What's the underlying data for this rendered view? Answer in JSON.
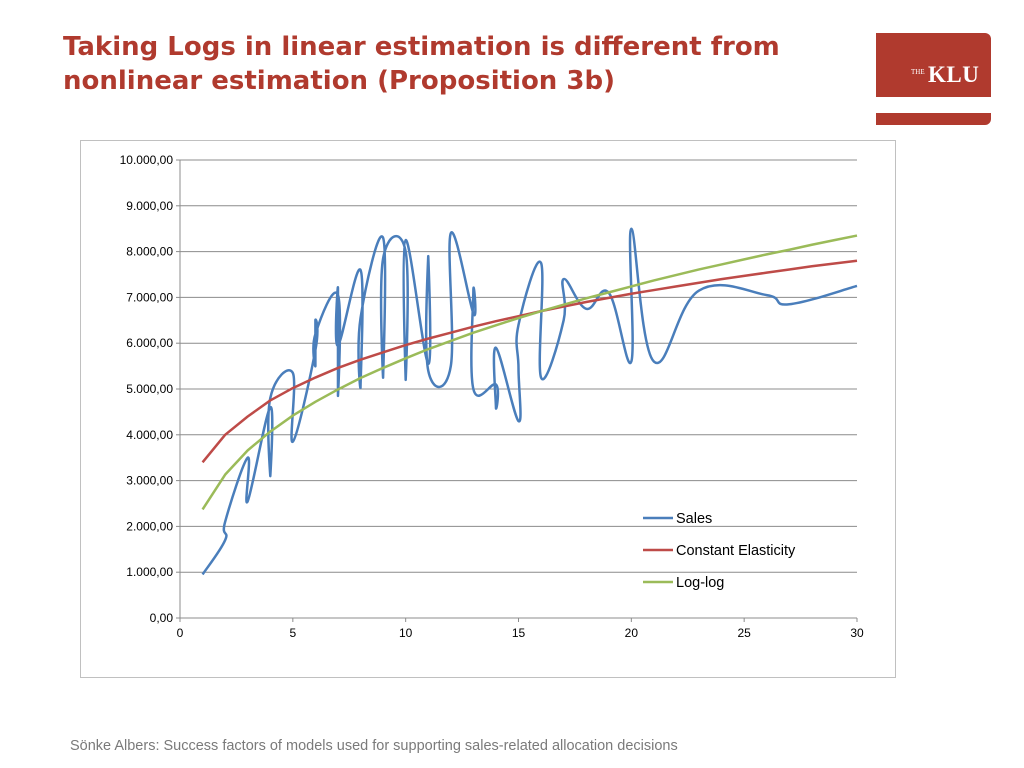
{
  "slide": {
    "title": "Taking Logs in linear estimation is different from nonlinear estimation (Proposition 3b)",
    "footer": "Sönke Albers: Success factors of models used for supporting sales-related allocation decisions",
    "logo_the": "THE",
    "logo_text": "KLU",
    "accent_color": "#b03a2e"
  },
  "chart_data": {
    "type": "line",
    "title": "",
    "xlabel": "",
    "ylabel": "",
    "xlim": [
      0,
      30
    ],
    "ylim": [
      0,
      10000
    ],
    "x_ticks": [
      "0",
      "5",
      "10",
      "15",
      "20",
      "25",
      "30"
    ],
    "x_tick_values": [
      0,
      5,
      10,
      15,
      20,
      25,
      30
    ],
    "y_ticks": [
      "0,00",
      "1.000,00",
      "2.000,00",
      "3.000,00",
      "4.000,00",
      "5.000,00",
      "6.000,00",
      "7.000,00",
      "8.000,00",
      "9.000,00",
      "10.000,00"
    ],
    "y_tick_values": [
      0,
      1000,
      2000,
      3000,
      4000,
      5000,
      6000,
      7000,
      8000,
      9000,
      10000
    ],
    "grid": "horizontal",
    "legend_position": "bottom-right",
    "series": [
      {
        "name": "Sales",
        "color": "#4a7ebb",
        "smooth": true,
        "points": [
          [
            1,
            950
          ],
          [
            2,
            1700
          ],
          [
            2,
            2100
          ],
          [
            3,
            3500
          ],
          [
            3,
            2550
          ],
          [
            4,
            4600
          ],
          [
            4,
            3100
          ],
          [
            4,
            4800
          ],
          [
            5,
            5350
          ],
          [
            5,
            3850
          ],
          [
            6,
            5850
          ],
          [
            6,
            6500
          ],
          [
            6,
            5500
          ],
          [
            6,
            6200
          ],
          [
            7,
            7050
          ],
          [
            7,
            4850
          ],
          [
            7,
            7200
          ],
          [
            7,
            5950
          ],
          [
            8,
            7600
          ],
          [
            8,
            5050
          ],
          [
            8,
            6550
          ],
          [
            9,
            8300
          ],
          [
            9,
            5250
          ],
          [
            9,
            7850
          ],
          [
            10,
            8000
          ],
          [
            10,
            5200
          ],
          [
            10,
            8250
          ],
          [
            11,
            5550
          ],
          [
            11,
            7900
          ],
          [
            11,
            5400
          ],
          [
            12,
            5500
          ],
          [
            12,
            8400
          ],
          [
            13,
            6650
          ],
          [
            13,
            7150
          ],
          [
            13,
            5000
          ],
          [
            14,
            5100
          ],
          [
            14,
            4600
          ],
          [
            14,
            5900
          ],
          [
            15,
            4300
          ],
          [
            15,
            5450
          ],
          [
            15,
            6400
          ],
          [
            16,
            7750
          ],
          [
            16,
            5250
          ],
          [
            17,
            6500
          ],
          [
            17,
            7400
          ],
          [
            18,
            6750
          ],
          [
            19,
            7100
          ],
          [
            20,
            5600
          ],
          [
            20,
            8500
          ],
          [
            21,
            5600
          ],
          [
            23,
            7150
          ],
          [
            26,
            7050
          ],
          [
            27,
            6850
          ],
          [
            30,
            7250
          ]
        ]
      },
      {
        "name": "Constant Elasticity",
        "color": "#be4b48",
        "smooth": false,
        "points": [
          [
            1,
            3400
          ],
          [
            2,
            4000
          ],
          [
            3,
            4400
          ],
          [
            4,
            4750
          ],
          [
            5,
            5020
          ],
          [
            6,
            5250
          ],
          [
            7,
            5460
          ],
          [
            8,
            5640
          ],
          [
            9,
            5800
          ],
          [
            10,
            5960
          ],
          [
            11,
            6100
          ],
          [
            12,
            6230
          ],
          [
            13,
            6360
          ],
          [
            14,
            6480
          ],
          [
            15,
            6590
          ],
          [
            16,
            6700
          ],
          [
            17,
            6800
          ],
          [
            18,
            6900
          ],
          [
            19,
            6990
          ],
          [
            20,
            7080
          ],
          [
            21,
            7160
          ],
          [
            22,
            7240
          ],
          [
            23,
            7320
          ],
          [
            24,
            7400
          ],
          [
            25,
            7470
          ],
          [
            26,
            7540
          ],
          [
            27,
            7610
          ],
          [
            28,
            7680
          ],
          [
            29,
            7740
          ],
          [
            30,
            7800
          ]
        ]
      },
      {
        "name": "Log-log",
        "color": "#9bbb59",
        "smooth": false,
        "points": [
          [
            1,
            2370
          ],
          [
            2,
            3130
          ],
          [
            3,
            3660
          ],
          [
            4,
            4070
          ],
          [
            5,
            4420
          ],
          [
            6,
            4720
          ],
          [
            7,
            4990
          ],
          [
            8,
            5240
          ],
          [
            9,
            5460
          ],
          [
            10,
            5670
          ],
          [
            11,
            5870
          ],
          [
            12,
            6050
          ],
          [
            13,
            6230
          ],
          [
            14,
            6390
          ],
          [
            15,
            6550
          ],
          [
            16,
            6700
          ],
          [
            17,
            6840
          ],
          [
            18,
            6980
          ],
          [
            19,
            7110
          ],
          [
            20,
            7240
          ],
          [
            21,
            7370
          ],
          [
            22,
            7490
          ],
          [
            23,
            7610
          ],
          [
            24,
            7720
          ],
          [
            25,
            7830
          ],
          [
            26,
            7940
          ],
          [
            27,
            8040
          ],
          [
            28,
            8150
          ],
          [
            29,
            8250
          ],
          [
            30,
            8350
          ]
        ]
      }
    ]
  }
}
